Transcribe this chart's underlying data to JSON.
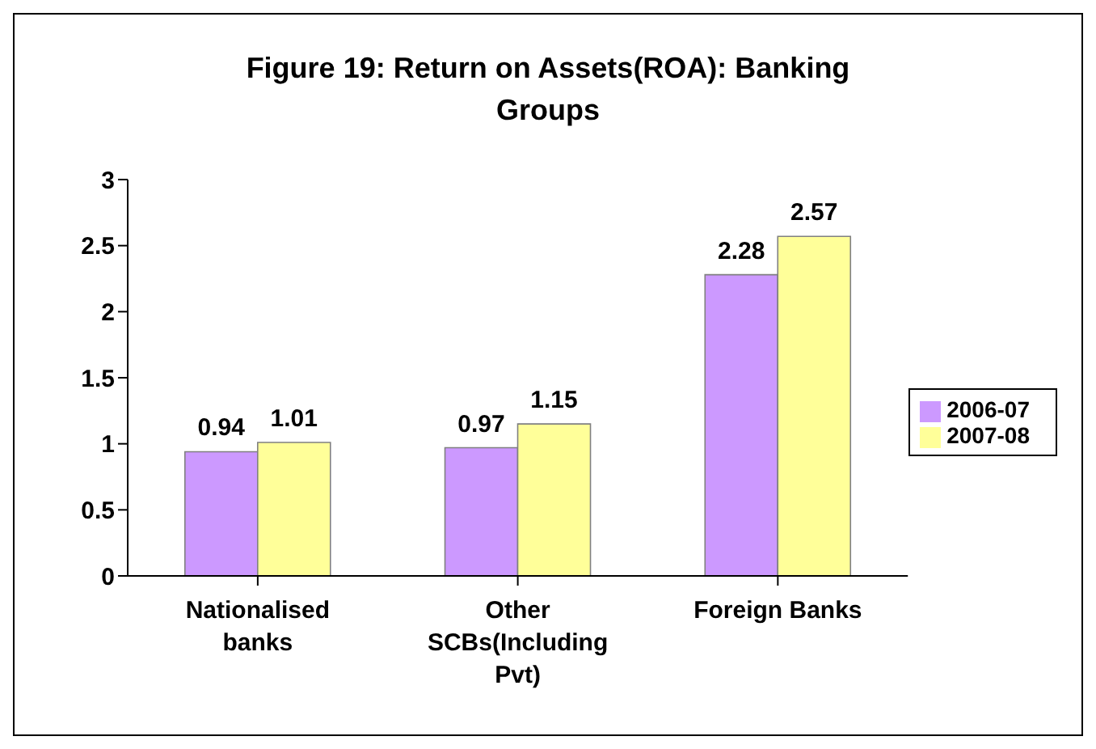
{
  "chart_data": {
    "type": "bar",
    "title": "Figure 19: Return on Assets(ROA): Banking Groups",
    "categories": [
      "Nationalised banks",
      "Other SCBs(Including Pvt)",
      "Foreign Banks"
    ],
    "series": [
      {
        "name": "2006-07",
        "color": "#cc99ff",
        "values": [
          0.94,
          0.97,
          2.28
        ]
      },
      {
        "name": "2007-08",
        "color": "#ffff99",
        "values": [
          1.01,
          1.15,
          2.57
        ]
      }
    ],
    "ylim": [
      0,
      3
    ],
    "yticks": [
      0,
      0.5,
      1,
      1.5,
      2,
      2.5,
      3
    ],
    "grid": false,
    "legend": "right",
    "data_labels": true
  }
}
